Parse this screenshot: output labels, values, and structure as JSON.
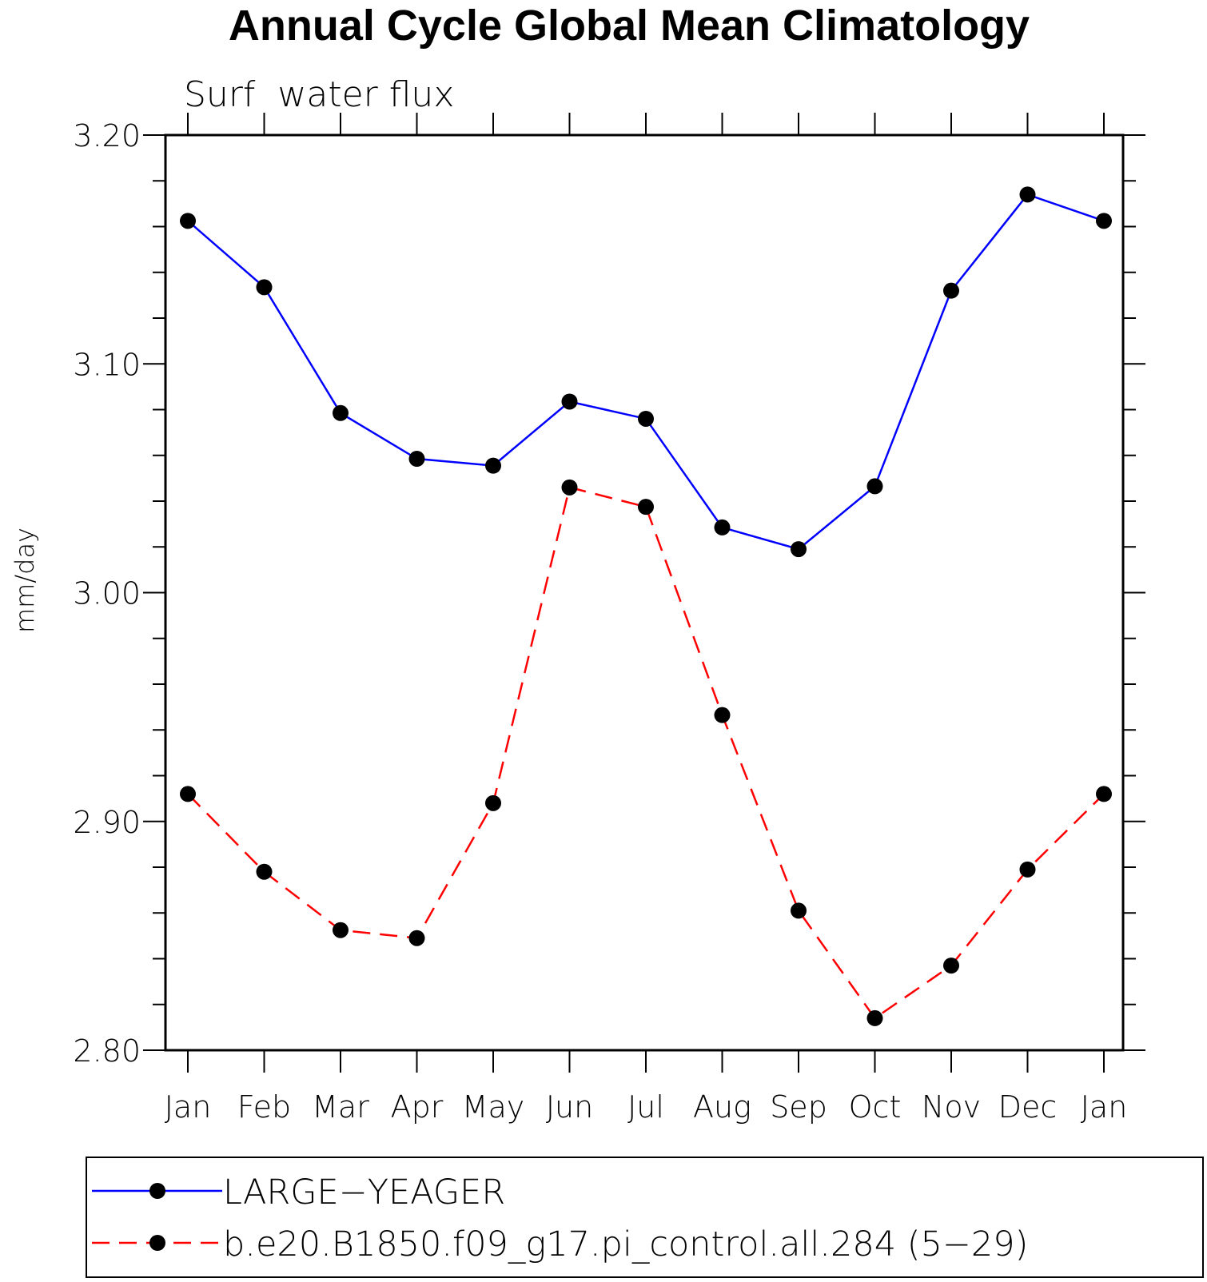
{
  "chart_data": {
    "type": "line",
    "title": "Annual Cycle Global Mean Climatology",
    "subtitle": "Surf  water flux",
    "xlabel": "",
    "ylabel": "mm/day",
    "categories": [
      "Jan",
      "Feb",
      "Mar",
      "Apr",
      "May",
      "Jun",
      "Jul",
      "Aug",
      "Sep",
      "Oct",
      "Nov",
      "Dec",
      "Jan"
    ],
    "ylim": [
      2.8,
      3.2
    ],
    "yticks": [
      "2.80",
      "2.90",
      "3.00",
      "3.10",
      "3.20"
    ],
    "y_minor_step": 0.02,
    "grid": false,
    "legend_position": "bottom",
    "series": [
      {
        "name": "LARGE−YEAGER",
        "color": "#0000ff",
        "line_style": "solid",
        "values": [
          3.1625,
          3.1335,
          3.0785,
          3.0585,
          3.0555,
          3.0835,
          3.076,
          3.0285,
          3.019,
          3.0465,
          3.132,
          3.174,
          3.1625
        ]
      },
      {
        "name": "b.e20.B1850.f09_g17.pi_control.all.284 (5−29)",
        "color": "#ff0000",
        "line_style": "dashed",
        "values": [
          2.912,
          2.878,
          2.8525,
          2.849,
          2.908,
          3.046,
          3.0375,
          2.9465,
          2.861,
          2.814,
          2.837,
          2.879,
          2.912
        ]
      }
    ]
  }
}
